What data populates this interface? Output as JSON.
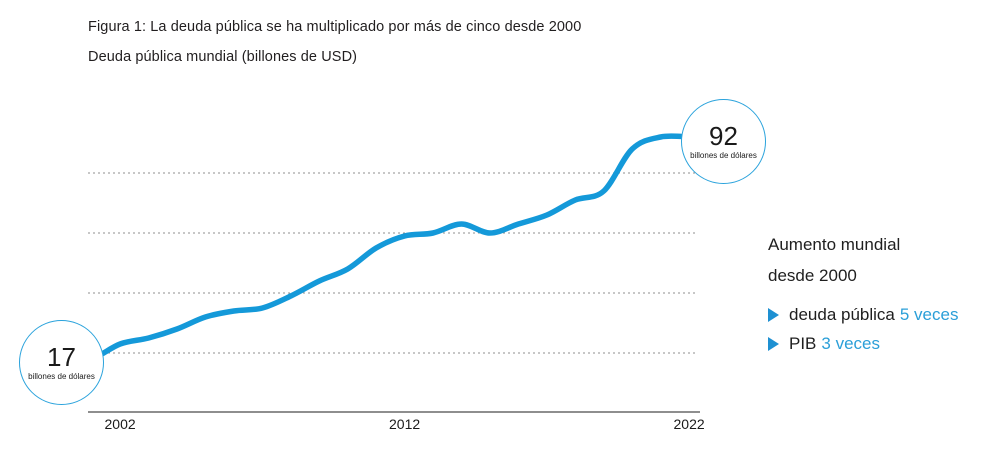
{
  "figure": {
    "title": "Figura 1: La deuda pública se ha multiplicado por más de cinco desde 2000",
    "subtitle": "Deuda pública mundial (billones de USD)"
  },
  "chart_data": {
    "type": "line",
    "title": "Deuda pública mundial (billones de USD)",
    "x": [
      2000,
      2001,
      2002,
      2003,
      2004,
      2005,
      2006,
      2007,
      2008,
      2009,
      2010,
      2011,
      2012,
      2013,
      2014,
      2015,
      2016,
      2017,
      2018,
      2019,
      2020,
      2021,
      2022
    ],
    "series": [
      {
        "name": "Deuda pública mundial",
        "values": [
          17,
          18,
          23,
          25,
          28,
          32,
          34,
          35,
          39,
          44,
          48,
          55,
          59,
          60,
          63,
          60,
          63,
          66,
          71,
          74,
          88,
          92,
          92
        ]
      }
    ],
    "xticks": [
      2002,
      2012,
      2022
    ],
    "ylim": [
      0,
      100
    ],
    "gridlines_y": [
      20,
      40,
      60,
      80
    ],
    "grid": "horizontal dotted, no y-axis labels",
    "legend": "none",
    "line_color": "#1499d9"
  },
  "annotations": {
    "start": {
      "value": "17",
      "unit": "billones de dólares"
    },
    "end": {
      "value": "92",
      "unit": "billones de dólares"
    }
  },
  "side_panel": {
    "heading_line1": "Aumento mundial",
    "heading_line2": "desde 2000",
    "items": [
      {
        "label": "deuda pública",
        "value": "5 veces"
      },
      {
        "label": "PIB",
        "value": "3 veces"
      }
    ]
  },
  "colors": {
    "accent_blue": "#1499d9",
    "badge_border_blue": "#2ba3dc",
    "value_text_blue": "#2b9fd8",
    "grid_gray": "#8f8f8f",
    "axis_gray": "#4a4a4a",
    "text_black": "#211e1f"
  }
}
